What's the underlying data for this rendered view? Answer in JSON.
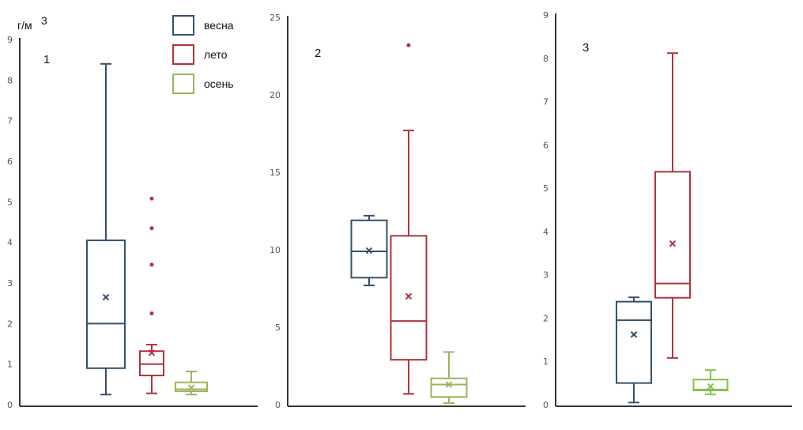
{
  "chart_data": {
    "type": "boxplot",
    "unit_label": "г/м",
    "unit_superscript": "3",
    "legend": {
      "placement": "top-right of panel 1",
      "entries": [
        {
          "label": "весна",
          "color": "#34506f"
        },
        {
          "label": "лето",
          "color": "#b3313f"
        },
        {
          "label": "осень",
          "color": "#9ab55e"
        }
      ]
    },
    "panels": [
      {
        "label": "1",
        "ylim": [
          0,
          9
        ],
        "yticks": [
          "0",
          "1",
          "2",
          "3",
          "4",
          "5",
          "6",
          "7",
          "8",
          "9"
        ],
        "series": [
          {
            "name": "весна",
            "min": 0.25,
            "q1": 0.9,
            "median": 2.0,
            "q3": 4.05,
            "max": 8.4,
            "mean": 2.65,
            "outliers": []
          },
          {
            "name": "лето",
            "min": 0.28,
            "q1": 0.72,
            "median": 1.0,
            "q3": 1.32,
            "max": 1.48,
            "mean": 1.28,
            "outliers": [
              2.25,
              3.45,
              4.35,
              5.08
            ]
          },
          {
            "name": "осень",
            "min": 0.25,
            "q1": 0.33,
            "median": 0.38,
            "q3": 0.55,
            "max": 0.82,
            "mean": 0.42,
            "outliers": []
          }
        ]
      },
      {
        "label": "2",
        "ylim": [
          0,
          25
        ],
        "yticks": [
          "0",
          "5",
          "10",
          "15",
          "20",
          "25"
        ],
        "series": [
          {
            "name": "весна",
            "min": 7.7,
            "q1": 8.2,
            "median": 9.9,
            "q3": 11.9,
            "max": 12.2,
            "mean": 9.95,
            "outliers": []
          },
          {
            "name": "лето",
            "min": 0.7,
            "q1": 2.9,
            "median": 5.4,
            "q3": 10.9,
            "max": 17.7,
            "mean": 7.0,
            "outliers": [
              23.2
            ]
          },
          {
            "name": "осень",
            "min": 0.1,
            "q1": 0.5,
            "median": 1.3,
            "q3": 1.7,
            "max": 3.4,
            "mean": 1.3,
            "outliers": []
          }
        ]
      },
      {
        "label": "3",
        "ylim": [
          0,
          9
        ],
        "yticks": [
          "0",
          "1",
          "2",
          "3",
          "4",
          "5",
          "6",
          "7",
          "8",
          "9"
        ],
        "series": [
          {
            "name": "весна",
            "min": 0.05,
            "q1": 0.5,
            "median": 1.95,
            "q3": 2.38,
            "max": 2.48,
            "mean": 1.62,
            "outliers": []
          },
          {
            "name": "лето",
            "min": 1.08,
            "q1": 2.47,
            "median": 2.8,
            "q3": 5.38,
            "max": 8.12,
            "mean": 3.72,
            "outliers": []
          },
          {
            "name": "осень",
            "min": 0.24,
            "q1": 0.33,
            "median": 0.35,
            "q3": 0.58,
            "max": 0.8,
            "mean": 0.42,
            "outliers": [],
            "color": "#7fc24a"
          }
        ]
      }
    ]
  }
}
